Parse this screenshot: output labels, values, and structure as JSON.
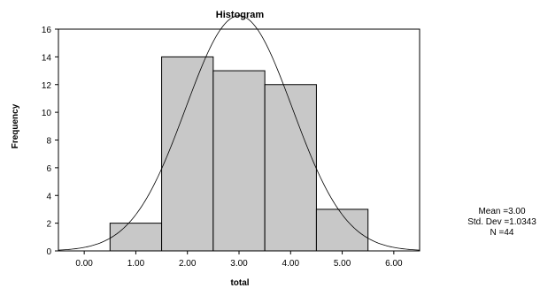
{
  "chart_data": {
    "type": "bar",
    "title": "Histogram",
    "xlabel": "total",
    "ylabel": "Frequency",
    "bin_edges": [
      0.5,
      1.5,
      2.5,
      3.5,
      4.5,
      5.5
    ],
    "values": [
      2,
      14,
      13,
      12,
      3
    ],
    "xlim": [
      -0.5,
      6.5
    ],
    "ylim": [
      0,
      16
    ],
    "x_ticks": [
      "0.00",
      "1.00",
      "2.00",
      "3.00",
      "4.00",
      "5.00",
      "6.00"
    ],
    "y_ticks": [
      "0",
      "2",
      "4",
      "6",
      "8",
      "10",
      "12",
      "14",
      "16"
    ],
    "normal_curve": {
      "mean": 3.0,
      "std": 1.0343,
      "n": 44,
      "bin_width": 1.0
    },
    "bar_color": "#c8c8c8",
    "grid": false
  },
  "stats": {
    "mean": "Mean =3.00",
    "std": "Std. Dev =1.0343",
    "n": "N =44"
  }
}
